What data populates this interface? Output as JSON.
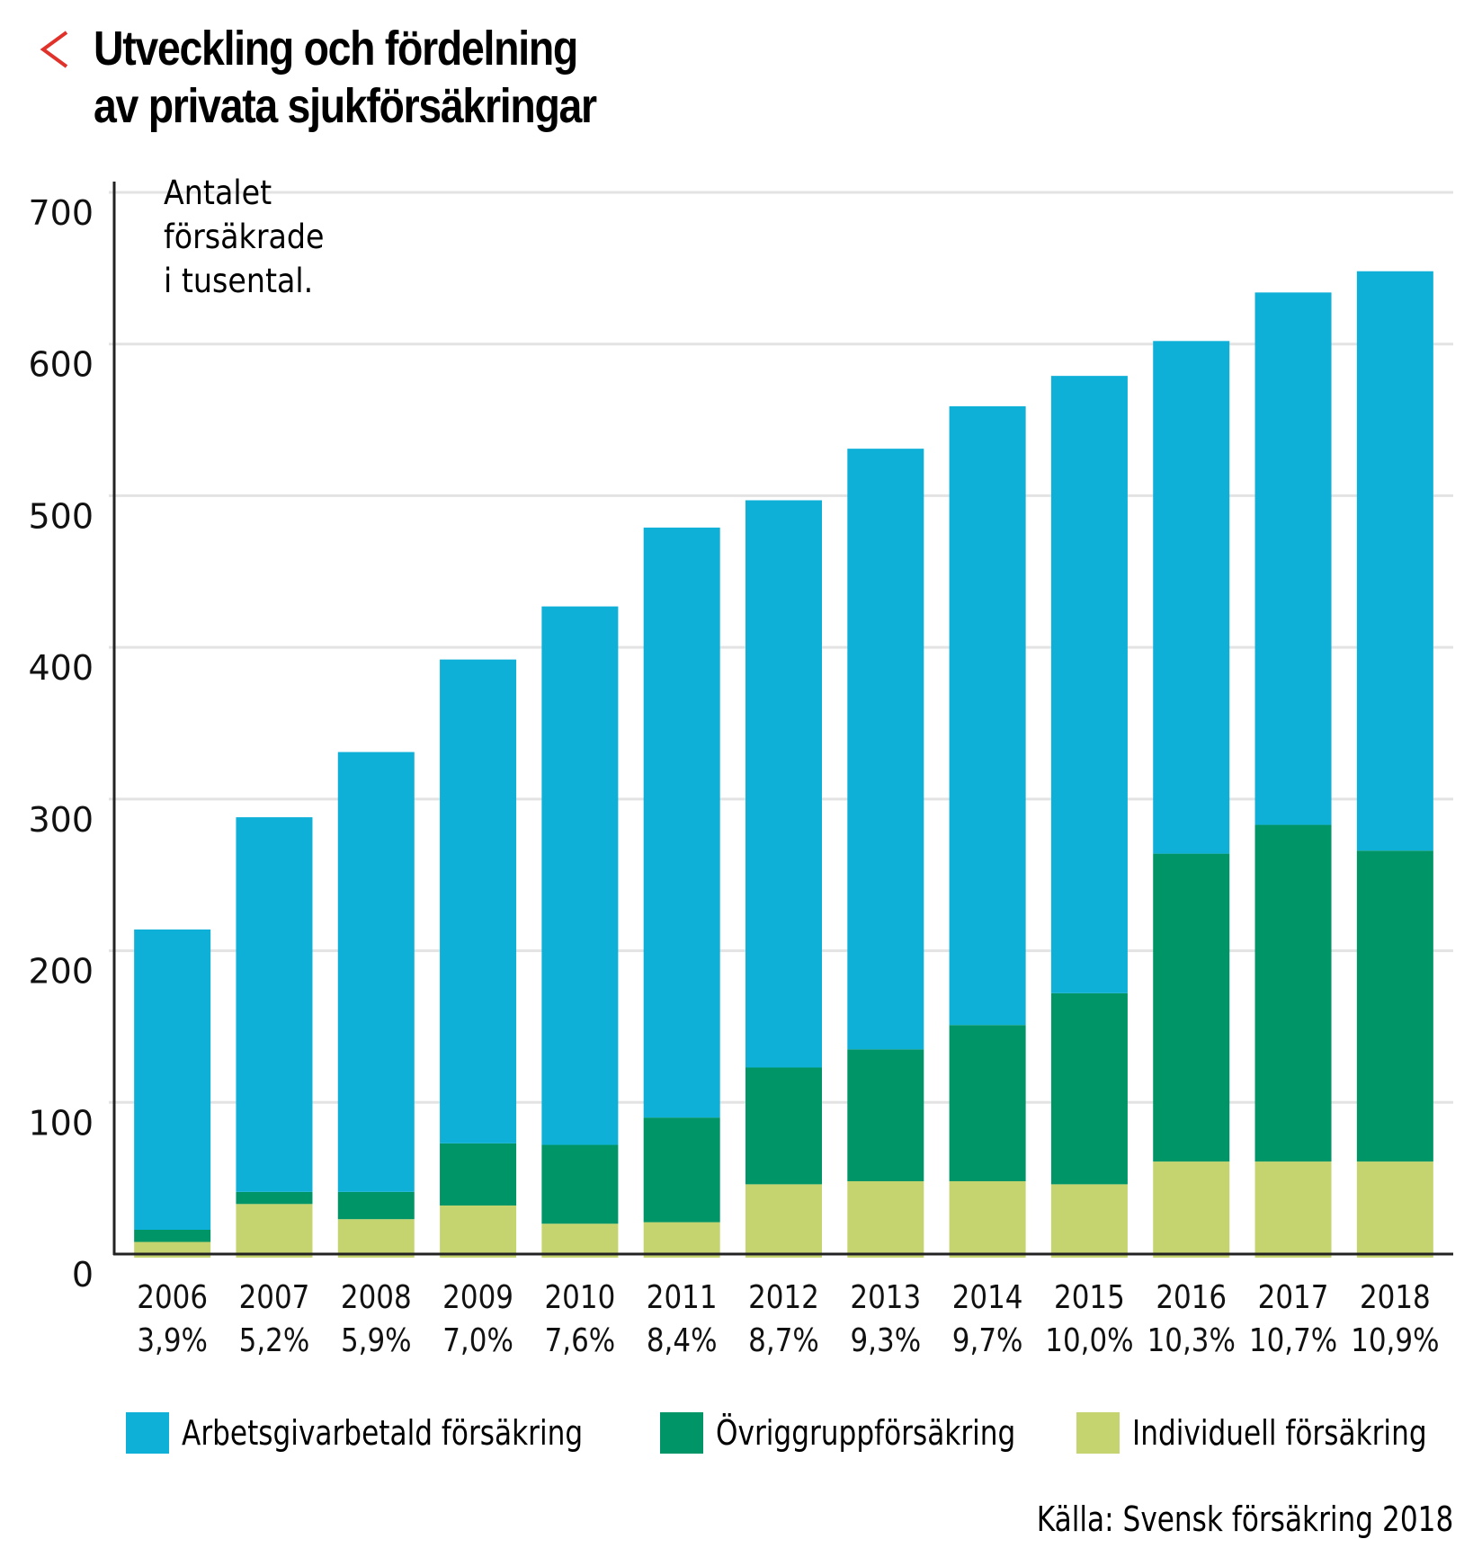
{
  "header": {
    "back_icon": "chevron-left-icon",
    "title_line1": "Utveckling och fördelning",
    "title_line2": "av privata sjukförsäkringar"
  },
  "colors": {
    "accent_red": "#e0322a",
    "arbetsgivarbetald": "#0eb0d8",
    "ovrig_grupp": "#009566",
    "individuell": "#c6d46f",
    "grid": "#e3e3e3",
    "axis": "#222222"
  },
  "chart_data": {
    "type": "bar",
    "stacked": true,
    "title": "Utveckling och fördelning av privata sjukförsäkringar",
    "ylabel_note": [
      "Antalet",
      "försäkrade",
      "i tusental."
    ],
    "xlabel": "",
    "ylabel": "Antalet försäkrade i tusental",
    "ylim": [
      0,
      700
    ],
    "yticks": [
      0,
      100,
      200,
      300,
      400,
      500,
      600,
      700
    ],
    "grid": true,
    "legend_position": "bottom",
    "categories": [
      "2006",
      "2007",
      "2008",
      "2009",
      "2010",
      "2011",
      "2012",
      "2013",
      "2014",
      "2015",
      "2016",
      "2017",
      "2018"
    ],
    "category_sublabels": [
      "3,9%",
      "5,2%",
      "5,9%",
      "7,0%",
      "7,6%",
      "8,4%",
      "8,7%",
      "9,3%",
      "9,7%",
      "10,0%",
      "10,3%",
      "10,7%",
      "10,9%"
    ],
    "series": [
      {
        "name": "Individuell försäkring",
        "color": "#c6d46f",
        "values": [
          8,
          33,
          23,
          32,
          20,
          21,
          46,
          48,
          48,
          46,
          61,
          61,
          61
        ]
      },
      {
        "name": "Övriggruppförsäkring",
        "color": "#009566",
        "values": [
          8,
          8,
          18,
          41,
          52,
          69,
          77,
          87,
          103,
          126,
          203,
          222,
          205
        ]
      },
      {
        "name": "Arbetsgivarbetald försäkring",
        "color": "#0eb0d8",
        "values": [
          198,
          247,
          290,
          319,
          355,
          389,
          374,
          396,
          408,
          407,
          338,
          351,
          382
        ]
      }
    ],
    "totals": [
      214,
      288,
      331,
      392,
      427,
      479,
      497,
      531,
      559,
      579,
      602,
      634,
      648
    ]
  },
  "legend": {
    "items": [
      {
        "label": "Arbetsgivarbetald försäkring",
        "color": "#0eb0d8"
      },
      {
        "label": "Övriggruppförsäkring",
        "color": "#009566"
      },
      {
        "label": "Individuell försäkring",
        "color": "#c6d46f"
      }
    ]
  },
  "source": "Källa: Svensk försäkring 2018"
}
